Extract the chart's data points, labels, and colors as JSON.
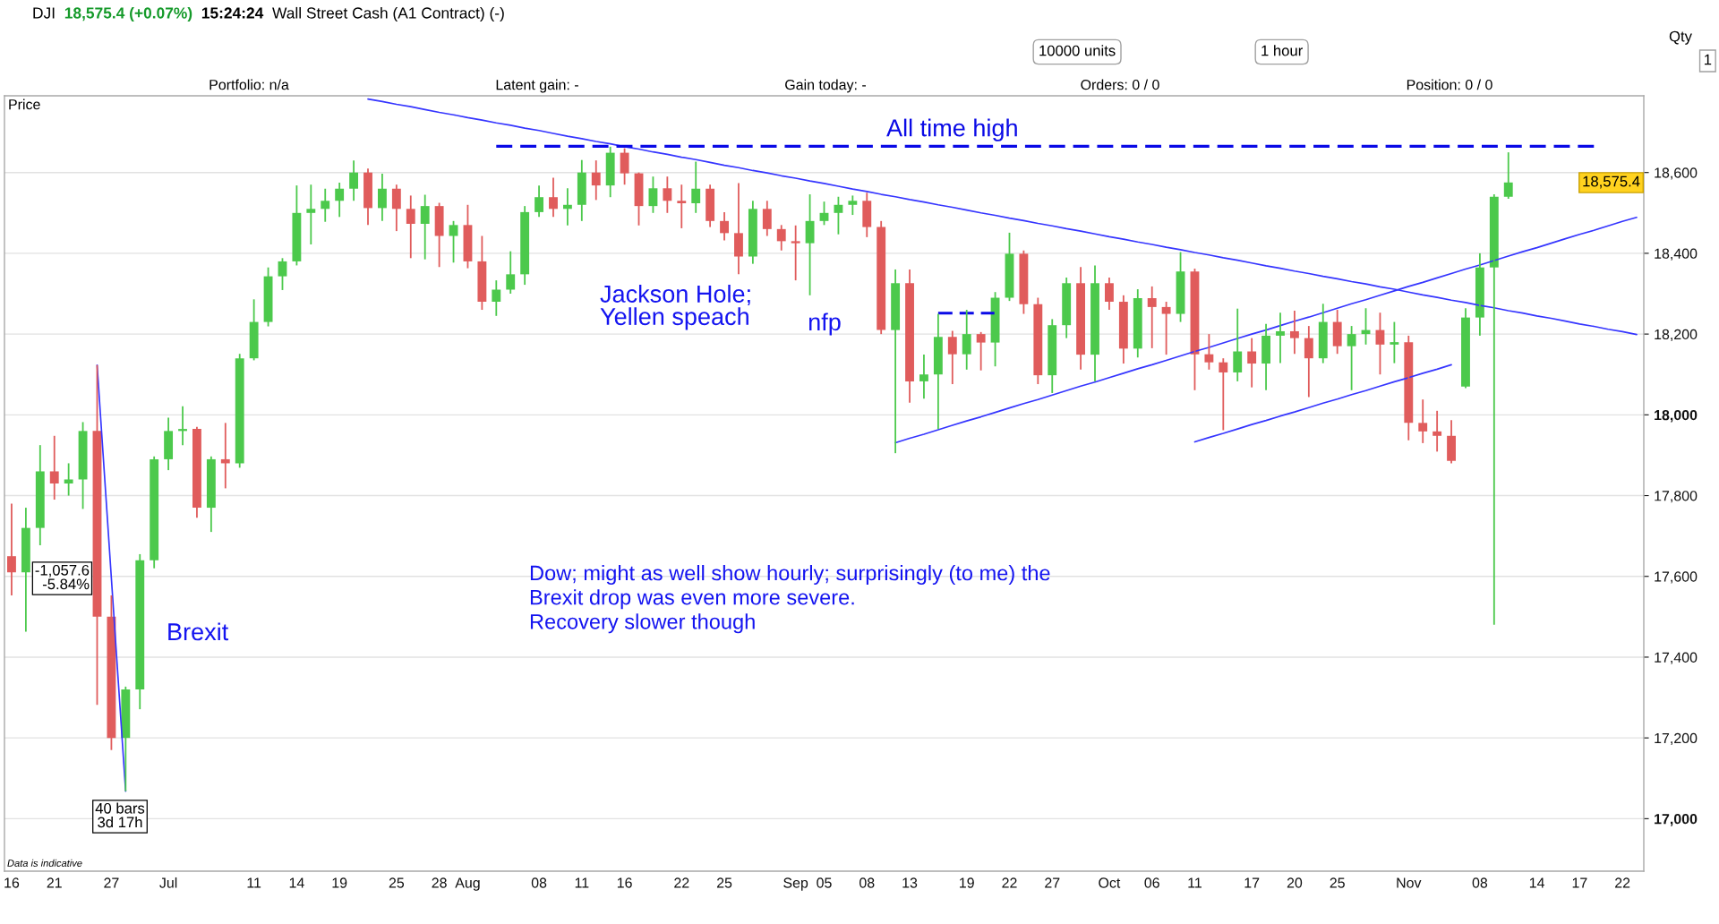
{
  "chart_data": {
    "type": "candlestick",
    "title": "DJI",
    "categories": [
      "16",
      null,
      null,
      "21",
      null,
      null,
      null,
      "27",
      null,
      null,
      null,
      "Jul",
      null,
      null,
      null,
      null,
      null,
      "11",
      null,
      null,
      "14",
      null,
      null,
      "19",
      null,
      null,
      null,
      "25",
      null,
      null,
      "28",
      null,
      "Aug",
      null,
      null,
      null,
      null,
      "08",
      null,
      null,
      "11",
      null,
      null,
      "16",
      null,
      null,
      null,
      "22",
      null,
      null,
      "25",
      null,
      null,
      null,
      null,
      "Sep",
      null,
      "05",
      null,
      null,
      "08",
      null,
      null,
      "13",
      null,
      null,
      null,
      "19",
      null,
      null,
      "22",
      null,
      null,
      "27",
      null,
      null,
      null,
      "Oct",
      null,
      null,
      "06",
      null,
      null,
      "11",
      null,
      null,
      null,
      "17",
      null,
      null,
      "20",
      null,
      null,
      "25",
      null,
      null,
      null,
      null,
      "Nov",
      null,
      null,
      null,
      null,
      "08",
      null,
      null,
      null,
      "14",
      null,
      null,
      "17",
      null,
      null,
      "22",
      null
    ],
    "ohlc": [
      [
        17650,
        17780,
        17553,
        17610
      ],
      [
        17610,
        17770,
        17463,
        17720
      ],
      [
        17720,
        17925,
        17677,
        17860
      ],
      [
        17860,
        17948,
        17790,
        17830
      ],
      [
        17830,
        17880,
        17800,
        17840
      ],
      [
        17840,
        17982,
        17767,
        17960
      ],
      [
        17960,
        18123,
        17282,
        17500
      ],
      [
        17500,
        17553,
        17170,
        17200
      ],
      [
        17200,
        17327,
        17068,
        17320
      ],
      [
        17320,
        17655,
        17271,
        17640
      ],
      [
        17640,
        17897,
        17620,
        17890
      ],
      [
        17890,
        17993,
        17863,
        17960
      ],
      [
        17960,
        18021,
        17925,
        17965
      ],
      [
        17965,
        17970,
        17745,
        17770
      ],
      [
        17770,
        17897,
        17710,
        17890
      ],
      [
        17890,
        17980,
        17818,
        17880
      ],
      [
        17880,
        18151,
        17869,
        18140
      ],
      [
        18140,
        18286,
        18135,
        18230
      ],
      [
        18230,
        18365,
        18219,
        18343
      ],
      [
        18343,
        18388,
        18309,
        18380
      ],
      [
        18380,
        18568,
        18370,
        18500
      ],
      [
        18500,
        18570,
        18422,
        18510
      ],
      [
        18510,
        18560,
        18478,
        18530
      ],
      [
        18530,
        18575,
        18490,
        18560
      ],
      [
        18560,
        18630,
        18530,
        18600
      ],
      [
        18600,
        18610,
        18470,
        18512
      ],
      [
        18512,
        18597,
        18480,
        18560
      ],
      [
        18560,
        18570,
        18455,
        18510
      ],
      [
        18510,
        18543,
        18388,
        18473
      ],
      [
        18473,
        18545,
        18385,
        18517
      ],
      [
        18517,
        18525,
        18366,
        18443
      ],
      [
        18443,
        18480,
        18377,
        18470
      ],
      [
        18470,
        18520,
        18363,
        18380
      ],
      [
        18380,
        18443,
        18260,
        18280
      ],
      [
        18280,
        18333,
        18245,
        18310
      ],
      [
        18310,
        18405,
        18300,
        18348
      ],
      [
        18348,
        18517,
        18322,
        18502
      ],
      [
        18502,
        18568,
        18490,
        18539
      ],
      [
        18539,
        18587,
        18490,
        18510
      ],
      [
        18510,
        18561,
        18469,
        18520
      ],
      [
        18520,
        18631,
        18480,
        18600
      ],
      [
        18600,
        18630,
        18532,
        18568
      ],
      [
        18568,
        18664,
        18539,
        18649
      ],
      [
        18649,
        18660,
        18570,
        18598
      ],
      [
        18598,
        18600,
        18469,
        18517
      ],
      [
        18517,
        18590,
        18500,
        18561
      ],
      [
        18561,
        18590,
        18500,
        18530
      ],
      [
        18530,
        18570,
        18462,
        18524
      ],
      [
        18524,
        18627,
        18500,
        18560
      ],
      [
        18560,
        18570,
        18465,
        18480
      ],
      [
        18480,
        18502,
        18432,
        18450
      ],
      [
        18450,
        18574,
        18348,
        18392
      ],
      [
        18392,
        18530,
        18374,
        18510
      ],
      [
        18510,
        18530,
        18443,
        18460
      ],
      [
        18460,
        18470,
        18407,
        18430
      ],
      [
        18430,
        18469,
        18333,
        18425
      ],
      [
        18425,
        18546,
        18296,
        18480
      ],
      [
        18480,
        18528,
        18470,
        18500
      ],
      [
        18500,
        18540,
        18447,
        18520
      ],
      [
        18520,
        18543,
        18495,
        18530
      ],
      [
        18530,
        18550,
        18440,
        18465
      ],
      [
        18465,
        18480,
        18200,
        18210
      ],
      [
        18210,
        18360,
        17905,
        18326
      ],
      [
        18326,
        18360,
        18030,
        18083
      ],
      [
        18083,
        18149,
        18040,
        18100
      ],
      [
        18100,
        18250,
        17965,
        18193
      ],
      [
        18193,
        18208,
        18076,
        18150
      ],
      [
        18150,
        18260,
        18112,
        18200
      ],
      [
        18200,
        18205,
        18110,
        18179
      ],
      [
        18179,
        18304,
        18120,
        18290
      ],
      [
        18290,
        18451,
        18282,
        18399
      ],
      [
        18399,
        18407,
        18250,
        18274
      ],
      [
        18274,
        18290,
        18076,
        18098
      ],
      [
        18098,
        18237,
        18054,
        18222
      ],
      [
        18222,
        18340,
        18190,
        18326
      ],
      [
        18326,
        18366,
        18112,
        18149
      ],
      [
        18149,
        18370,
        18083,
        18326
      ],
      [
        18326,
        18340,
        18260,
        18280
      ],
      [
        18280,
        18296,
        18127,
        18164
      ],
      [
        18164,
        18311,
        18142,
        18289
      ],
      [
        18289,
        18318,
        18165,
        18267
      ],
      [
        18267,
        18280,
        18149,
        18250
      ],
      [
        18250,
        18403,
        18230,
        18355
      ],
      [
        18355,
        18362,
        18061,
        18150
      ],
      [
        18150,
        18200,
        18112,
        18130
      ],
      [
        18130,
        18140,
        17962,
        18105
      ],
      [
        18105,
        18263,
        18083,
        18157
      ],
      [
        18157,
        18190,
        18068,
        18127
      ],
      [
        18127,
        18225,
        18061,
        18196
      ],
      [
        18196,
        18253,
        18128,
        18207
      ],
      [
        18207,
        18258,
        18151,
        18190
      ],
      [
        18190,
        18220,
        18044,
        18140
      ],
      [
        18140,
        18275,
        18128,
        18230
      ],
      [
        18230,
        18260,
        18151,
        18170
      ],
      [
        18170,
        18220,
        18061,
        18200
      ],
      [
        18200,
        18264,
        18174,
        18210
      ],
      [
        18210,
        18253,
        18100,
        18174
      ],
      [
        18174,
        18230,
        18128,
        18180
      ],
      [
        18180,
        18196,
        17937,
        17980
      ],
      [
        17980,
        18038,
        17930,
        17959
      ],
      [
        17959,
        18010,
        17909,
        17948
      ],
      [
        17948,
        17987,
        17880,
        17886
      ],
      [
        18070,
        18264,
        18066,
        18241
      ],
      [
        18241,
        18400,
        18196,
        18365
      ],
      [
        18365,
        18546,
        17480,
        18540
      ],
      [
        18540,
        18650,
        18535,
        18575.4
      ],
      null,
      null,
      null,
      null,
      null,
      null,
      null,
      null,
      null
    ],
    "colors": [
      "#e05c5c",
      "#4cc94c",
      "#4cc94c",
      "#e05c5c",
      "#4cc94c",
      "#4cc94c",
      "#e05c5c",
      "#e05c5c",
      "#4cc94c",
      "#4cc94c",
      "#4cc94c",
      "#4cc94c",
      "#4cc94c",
      "#e05c5c",
      "#4cc94c",
      "#e05c5c",
      "#4cc94c",
      "#4cc94c",
      "#4cc94c",
      "#4cc94c",
      "#4cc94c",
      "#4cc94c",
      "#4cc94c",
      "#4cc94c",
      "#4cc94c",
      "#e05c5c",
      "#4cc94c",
      "#e05c5c",
      "#e05c5c",
      "#4cc94c",
      "#e05c5c",
      "#4cc94c",
      "#e05c5c",
      "#e05c5c",
      "#4cc94c",
      "#4cc94c",
      "#4cc94c",
      "#4cc94c",
      "#e05c5c",
      "#4cc94c",
      "#4cc94c",
      "#e05c5c",
      "#4cc94c",
      "#e05c5c",
      "#e05c5c",
      "#4cc94c",
      "#e05c5c",
      "#e05c5c",
      "#4cc94c",
      "#e05c5c",
      "#e05c5c",
      "#e05c5c",
      "#4cc94c",
      "#e05c5c",
      "#e05c5c",
      "#e05c5c",
      "#4cc94c",
      "#4cc94c",
      "#4cc94c",
      "#4cc94c",
      "#e05c5c",
      "#e05c5c",
      "#4cc94c",
      "#e05c5c",
      "#4cc94c",
      "#4cc94c",
      "#e05c5c",
      "#4cc94c",
      "#e05c5c",
      "#4cc94c",
      "#4cc94c",
      "#e05c5c",
      "#e05c5c",
      "#4cc94c",
      "#4cc94c",
      "#e05c5c",
      "#4cc94c",
      "#e05c5c",
      "#e05c5c",
      "#4cc94c",
      "#e05c5c",
      "#e05c5c",
      "#4cc94c",
      "#e05c5c",
      "#e05c5c",
      "#e05c5c",
      "#4cc94c",
      "#e05c5c",
      "#4cc94c",
      "#4cc94c",
      "#e05c5c",
      "#e05c5c",
      "#4cc94c",
      "#e05c5c",
      "#4cc94c",
      "#4cc94c",
      "#e05c5c",
      "#4cc94c",
      "#e05c5c",
      "#e05c5c",
      "#e05c5c",
      "#e05c5c",
      "#4cc94c",
      "#4cc94c",
      "#4cc94c",
      "#4cc94c",
      null,
      null,
      null,
      null,
      null,
      null,
      null,
      null,
      null
    ],
    "series": [
      {
        "type": "line",
        "color": "#3535ff",
        "line_style": "solid",
        "values": [
          null,
          null,
          null,
          null,
          null,
          null,
          null,
          null,
          null,
          null,
          null,
          null,
          null,
          null,
          null,
          null,
          null,
          null,
          null,
          null,
          null,
          null,
          null,
          null,
          null,
          18782,
          18776,
          18769,
          18763,
          18756,
          18749,
          18743,
          18736,
          18730,
          18723,
          18717,
          18710,
          18704,
          18697,
          18690,
          18684,
          18677,
          18671,
          18664,
          18658,
          18651,
          18645,
          18638,
          18632,
          18625,
          18618,
          18612,
          18605,
          18599,
          18592,
          18586,
          18579,
          18573,
          18566,
          18559,
          18553,
          18546,
          18540,
          18533,
          18527,
          18520,
          18514,
          18507,
          18500,
          18494,
          18487,
          18481,
          18474,
          18468,
          18461,
          18455,
          18448,
          18441,
          18435,
          18428,
          18422,
          18415,
          18409,
          18402,
          18396,
          18389,
          18383,
          18376,
          18369,
          18363,
          18356,
          18350,
          18343,
          18337,
          18330,
          18324,
          18317,
          18311,
          18304,
          18297,
          18291,
          18284,
          18278,
          18271,
          18265,
          18258,
          18252,
          18245,
          18239,
          18232,
          18225,
          18219,
          18212,
          18206,
          18199
        ]
      },
      {
        "type": "line",
        "color": "#3535ff",
        "line_style": "solid",
        "values": [
          null,
          null,
          null,
          null,
          null,
          null,
          null,
          null,
          null,
          null,
          null,
          null,
          null,
          null,
          null,
          null,
          null,
          null,
          null,
          null,
          null,
          null,
          null,
          null,
          null,
          null,
          null,
          null,
          null,
          null,
          null,
          null,
          null,
          null,
          null,
          null,
          null,
          null,
          null,
          null,
          null,
          null,
          null,
          null,
          null,
          null,
          null,
          null,
          null,
          null,
          null,
          null,
          null,
          null,
          null,
          null,
          null,
          null,
          null,
          null,
          null,
          null,
          17931,
          17942,
          17952,
          17963,
          17974,
          17985,
          17995,
          18006,
          18017,
          18028,
          18038,
          18049,
          18060,
          18071,
          18081,
          18092,
          18103,
          18114,
          18124,
          18135,
          18146,
          18157,
          18167,
          18178,
          18189,
          18200,
          18210,
          18221,
          18232,
          18242,
          18253,
          18264,
          18275,
          18285,
          18296,
          18307,
          18318,
          18328,
          18339,
          18350,
          18361,
          18371,
          18382,
          18393,
          18404,
          18414,
          18425,
          18436,
          18447,
          18457,
          18468,
          18479,
          18489
        ]
      },
      {
        "type": "line",
        "color": "#3535ff",
        "line_style": "solid",
        "values": [
          null,
          null,
          null,
          null,
          null,
          null,
          null,
          null,
          null,
          null,
          null,
          null,
          null,
          null,
          null,
          null,
          null,
          null,
          null,
          null,
          null,
          null,
          null,
          null,
          null,
          null,
          null,
          null,
          null,
          null,
          null,
          null,
          null,
          null,
          null,
          null,
          null,
          null,
          null,
          null,
          null,
          null,
          null,
          null,
          null,
          null,
          null,
          null,
          null,
          null,
          null,
          null,
          null,
          null,
          null,
          null,
          null,
          null,
          null,
          null,
          null,
          null,
          null,
          null,
          null,
          null,
          null,
          null,
          null,
          null,
          null,
          null,
          null,
          null,
          null,
          null,
          null,
          null,
          null,
          null,
          null,
          null,
          null,
          17933,
          17944,
          17954,
          17965,
          17976,
          17986,
          17997,
          18007,
          18018,
          18029,
          18039,
          18050,
          18060,
          18071,
          18082,
          18092,
          18103,
          18113,
          18124,
          null,
          null,
          null,
          null,
          null,
          null,
          null,
          null,
          null,
          null,
          null,
          null,
          null
        ]
      },
      {
        "type": "line",
        "color": "#3535ff",
        "line_style": "solid",
        "values": [
          null,
          null,
          null,
          null,
          null,
          null,
          18123,
          17595,
          17068,
          null,
          null,
          null,
          null,
          null,
          null,
          null,
          null,
          null,
          null,
          null,
          null,
          null,
          null,
          null,
          null,
          null,
          null,
          null,
          null,
          null,
          null,
          null,
          null,
          null,
          null,
          null,
          null,
          null,
          null,
          null,
          null,
          null,
          null,
          null,
          null,
          null,
          null,
          null,
          null,
          null,
          null,
          null,
          null,
          null,
          null,
          null,
          null,
          null,
          null,
          null,
          null,
          null,
          null,
          null,
          null,
          null,
          null,
          null,
          null,
          null,
          null,
          null,
          null,
          null,
          null,
          null,
          null,
          null,
          null,
          null,
          null,
          null,
          null,
          null,
          null,
          null,
          null,
          null,
          null,
          null,
          null,
          null,
          null,
          null,
          null,
          null,
          null,
          null,
          null,
          null,
          null,
          null,
          null,
          null,
          null,
          null,
          null,
          null,
          null,
          null,
          null,
          null,
          null,
          null,
          null
        ]
      },
      {
        "type": "line",
        "name": "All time high",
        "color": "#0a0ae6",
        "line_style": "dashed",
        "values": [
          null,
          null,
          null,
          null,
          null,
          null,
          null,
          null,
          null,
          null,
          null,
          null,
          null,
          null,
          null,
          null,
          null,
          null,
          null,
          null,
          null,
          null,
          null,
          null,
          null,
          null,
          null,
          null,
          null,
          null,
          null,
          null,
          null,
          null,
          18665,
          18665,
          18665,
          18665,
          18665,
          18665,
          18665,
          18665,
          18665,
          18665,
          18665,
          18665,
          18665,
          18665,
          18665,
          18665,
          18665,
          18665,
          18665,
          18665,
          18665,
          18665,
          18665,
          18665,
          18665,
          18665,
          18665,
          18665,
          18665,
          18665,
          18665,
          18665,
          18665,
          18665,
          18665,
          18665,
          18665,
          18665,
          18665,
          18665,
          18665,
          18665,
          18665,
          18665,
          18665,
          18665,
          18665,
          18665,
          18665,
          18665,
          18665,
          18665,
          18665,
          18665,
          18665,
          18665,
          18665,
          18665,
          18665,
          18665,
          18665,
          18665,
          18665,
          18665,
          18665,
          18665,
          18665,
          18665,
          18665,
          18665,
          18665,
          18665,
          18665,
          18665,
          18665,
          18665,
          18665,
          18665,
          null,
          null,
          null
        ]
      },
      {
        "type": "line",
        "color": "#0a0ae6",
        "line_style": "dashed",
        "values": [
          null,
          null,
          null,
          null,
          null,
          null,
          null,
          null,
          null,
          null,
          null,
          null,
          null,
          null,
          null,
          null,
          null,
          null,
          null,
          null,
          null,
          null,
          null,
          null,
          null,
          null,
          null,
          null,
          null,
          null,
          null,
          null,
          null,
          null,
          null,
          null,
          null,
          null,
          null,
          null,
          null,
          null,
          null,
          null,
          null,
          null,
          null,
          null,
          null,
          null,
          null,
          null,
          null,
          null,
          null,
          null,
          null,
          null,
          null,
          null,
          null,
          null,
          null,
          null,
          null,
          18252,
          18252,
          18252,
          18252,
          18252,
          null,
          null,
          null,
          null,
          null,
          null,
          null,
          null,
          null,
          null,
          null,
          null,
          null,
          null,
          null,
          null,
          null,
          null,
          null,
          null,
          null,
          null,
          null,
          null,
          null,
          null,
          null,
          null,
          null,
          null,
          null,
          null,
          null,
          null,
          null,
          null,
          null,
          null,
          null,
          null,
          null,
          null,
          null,
          null,
          null
        ]
      }
    ],
    "ylim": [
      16870,
      18790
    ],
    "yticks": [
      {
        "value": 17000,
        "label": "17,000"
      },
      {
        "value": 17200,
        "label": "17,200"
      },
      {
        "value": 17400,
        "label": "17,400"
      },
      {
        "value": 17600,
        "label": "17,600"
      },
      {
        "value": 17800,
        "label": "17,800"
      },
      {
        "value": 18000,
        "label": "18,000"
      },
      {
        "value": 18200,
        "label": "18,200"
      },
      {
        "value": 18400,
        "label": "18,400"
      },
      {
        "value": 18600,
        "label": "18,600"
      }
    ],
    "grid": "y",
    "annotations": [
      "18,575.4 (+0.07%)",
      "15:24:24",
      "Wall Street Cash (A1 Contract) (-)",
      "10000 units",
      "1 hour",
      "Qty",
      "1",
      "Portfolio: n/a",
      "Latent gain: -",
      "Gain today: -",
      "Orders: 0 / 0",
      "Position: 0 / 0",
      "Price",
      "Jackson Hole;\nYellen speach",
      "nfp",
      "Brexit",
      "-1,057.6\n-5.84%",
      "40 bars\n3d 17h",
      "Dow; might as well show hourly; surprisingly (to me) the\nBrexit drop was even more severe.\nRecovery slower though",
      "Data is indicative",
      "18,575.4"
    ]
  }
}
